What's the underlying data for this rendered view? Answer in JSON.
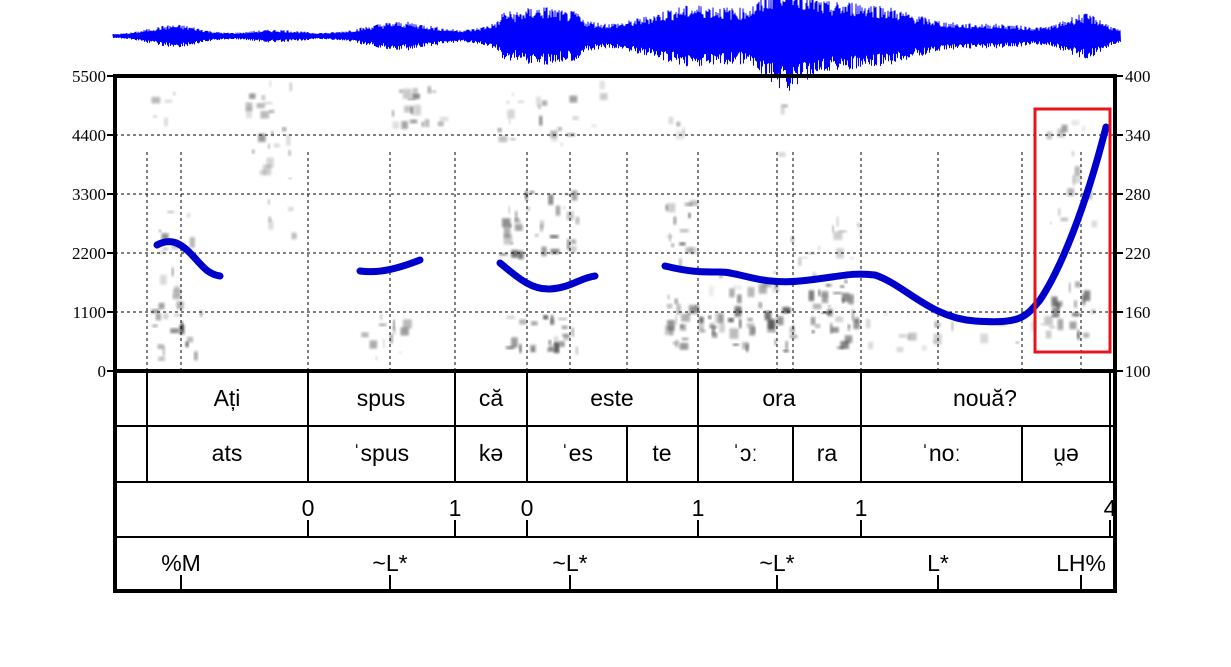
{
  "spectrogram": {
    "freq_axis": {
      "unit": "Hz",
      "min": 0,
      "max": 5500,
      "ticks": [
        0,
        1100,
        2200,
        3300,
        4400,
        5500
      ]
    },
    "f0_axis": {
      "unit": "Hz",
      "min": 100,
      "max": 400,
      "ticks": [
        100,
        160,
        220,
        280,
        340,
        400
      ]
    },
    "highlight_color": "#e8141c",
    "pitch_color": "#0000cc",
    "waveform_color": "#0000ff"
  },
  "tiers": {
    "words": [
      "Ați",
      "spus",
      "că",
      "este",
      "ora",
      "nouă?"
    ],
    "syllables": [
      "ats",
      "ˈspus",
      "kə",
      "ˈes",
      "te",
      "ˈɔː",
      "ra",
      "ˈnoː",
      "u̯ə"
    ],
    "break_indices": [
      "0",
      "1",
      "0",
      "1",
      "1",
      "4"
    ],
    "tones": [
      "%M",
      "~L*",
      "~L*",
      "~L*",
      "L*",
      "LH%"
    ]
  }
}
